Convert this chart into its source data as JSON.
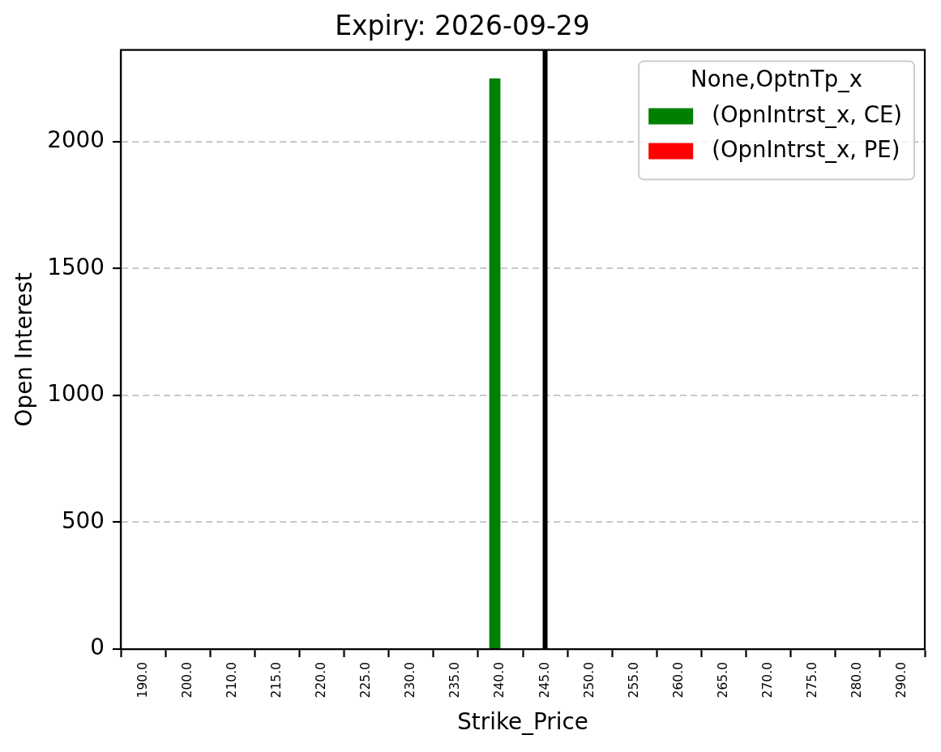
{
  "chart_data": {
    "type": "bar",
    "title": "Expiry: 2026-09-29",
    "xlabel": "Strike_Price",
    "ylabel": "Open Interest",
    "legend_title": "None,OptnTp_x",
    "categories": [
      "190.0",
      "200.0",
      "210.0",
      "215.0",
      "220.0",
      "225.0",
      "230.0",
      "235.0",
      "240.0",
      "245.0",
      "250.0",
      "255.0",
      "260.0",
      "265.0",
      "270.0",
      "275.0",
      "280.0",
      "290.0"
    ],
    "series": [
      {
        "name": "(OpnIntrst_x, CE)",
        "color": "#008000",
        "values": [
          0,
          0,
          0,
          0,
          0,
          0,
          0,
          0,
          2250,
          0,
          0,
          0,
          0,
          0,
          0,
          0,
          0,
          0
        ]
      },
      {
        "name": "(OpnIntrst_x, PE)",
        "color": "#ff0000",
        "values": [
          0,
          0,
          0,
          0,
          0,
          0,
          0,
          0,
          0,
          0,
          0,
          0,
          0,
          0,
          0,
          0,
          0,
          0
        ]
      }
    ],
    "ylim": [
      0,
      2362
    ],
    "yticks": [
      0,
      500,
      1000,
      1500,
      2000
    ],
    "ref_lines": [
      {
        "axis": "x",
        "value": "245.0",
        "color": "#000000"
      }
    ],
    "grid": "y",
    "legend": "top right"
  }
}
